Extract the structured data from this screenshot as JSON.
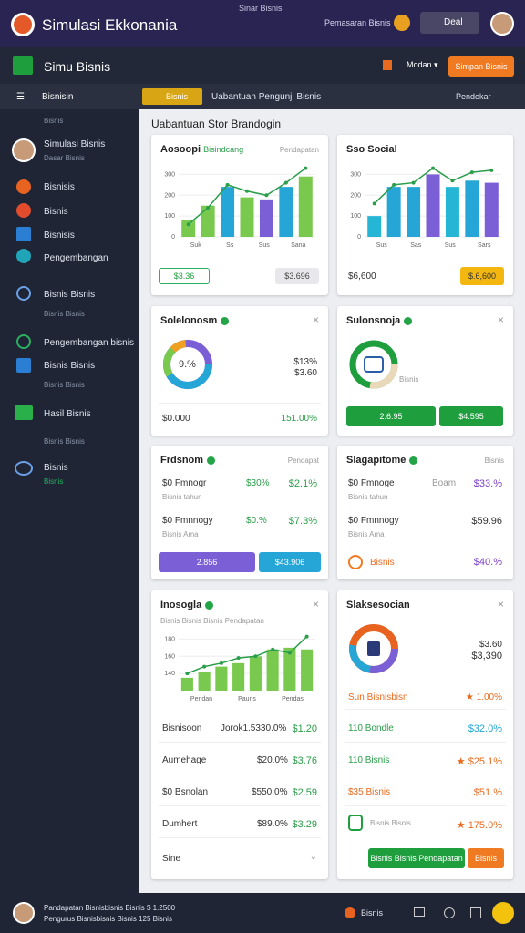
{
  "header": {
    "status": "Sinar Bisnis",
    "app_title": "Simulasi Ekkonania",
    "link": "Pemasaran Bisnis",
    "user_button": "Deal"
  },
  "toolbar": {
    "title": "Simu Bisnis",
    "dropdown": "Modan",
    "button": "Simpan Bisnis"
  },
  "subbar": {
    "menu": "Bisnisin",
    "badge": "Bisnis",
    "breadcrumb": "Uabantuan Pengunji Bisnis",
    "right": "Pendekar"
  },
  "sidebar": {
    "section": "Bisnis",
    "items": [
      {
        "label": "Simulasi Bisnis",
        "sub": "Dasar Bisnis"
      },
      {
        "label": "Bisnisis"
      },
      {
        "label": "Bisnis"
      },
      {
        "label": "Bisnisis"
      },
      {
        "label": "Pengembangan"
      },
      {
        "label": "Bisnis Bisnis",
        "sub": "Bisnis Bisnis"
      },
      {
        "label": "Pengembangan bisnis"
      },
      {
        "label": "Bisnis Bisnis",
        "sub": "Bisnis Bisnis"
      },
      {
        "label": "Hasil Bisnis"
      }
    ],
    "section2": "Bisnis Bisnis",
    "last": {
      "label": "Bisnis",
      "sub": "Bisnis"
    }
  },
  "page_title": "Uabantuan Stor Brandogin",
  "cards": [
    {
      "title": "Aosoopi",
      "tag": "Bisindcang",
      "side": "Pendapatan",
      "badge": "$3.36",
      "button": "$3.696",
      "chart": {
        "ylim": [
          0,
          350
        ],
        "yticks": [
          0,
          100,
          200,
          300
        ],
        "xlabels": [
          "Suk",
          "Ss",
          "Sus",
          "Sana"
        ],
        "bars": [
          {
            "value": 80,
            "color": "#7ac94f"
          },
          {
            "value": 150,
            "color": "#7ac94f"
          },
          {
            "value": 240,
            "color": "#25a6d6"
          },
          {
            "value": 190,
            "color": "#7ac94f"
          },
          {
            "value": 180,
            "color": "#7a5fd6"
          },
          {
            "value": 240,
            "color": "#25a6d6"
          },
          {
            "value": 290,
            "color": "#7ac94f"
          }
        ],
        "line": [
          60,
          140,
          250,
          220,
          200,
          260,
          330
        ]
      }
    },
    {
      "title": "Sso Social",
      "value": "$6,600",
      "button": "$.6,600",
      "chart": {
        "ylim": [
          0,
          350
        ],
        "yticks": [
          0,
          100,
          200,
          300
        ],
        "xlabels": [
          "Sus",
          "Sas",
          "Sus",
          "Sars"
        ],
        "bars": [
          {
            "value": 100,
            "color": "#25b6d6"
          },
          {
            "value": 240,
            "color": "#25a6d6"
          },
          {
            "value": 240,
            "color": "#25a6d6"
          },
          {
            "value": 300,
            "color": "#7a5fd6"
          },
          {
            "value": 240,
            "color": "#25b6d6"
          },
          {
            "value": 270,
            "color": "#25a6d6"
          },
          {
            "value": 260,
            "color": "#7a5fd6"
          }
        ],
        "line": [
          160,
          250,
          260,
          330,
          270,
          310,
          320
        ]
      }
    },
    {
      "title": "Solelonosm",
      "center": "9.%",
      "right1": "$13%",
      "right2": "$3.60",
      "foot_left": "$0.000",
      "foot_right": "151.00%"
    },
    {
      "title": "Sulonsnoja",
      "legend": "Bisnis",
      "button1": "2.6.95",
      "button2": "$4.595"
    },
    {
      "title": "Frdsnom",
      "side": "Pendapat",
      "rows": [
        {
          "label": "$0 Fmnogr",
          "sub": "Bisnis tahun",
          "v1": "$30%",
          "v2": "$2.1%"
        },
        {
          "label": "$0 Fmnnogy",
          "sub": "Bisnis Ama",
          "v1": "$0.%",
          "v2": "$7.3%"
        }
      ],
      "button1": "2.856",
      "button2": "$43.906"
    },
    {
      "title": "Slagapitome",
      "side": "Bisnis",
      "rows": [
        {
          "label": "$0 Fmnoge",
          "sub": "Bisnis tahun",
          "v1": "Boam",
          "v2": "$33.%"
        },
        {
          "label": "$0 Fmnnogy",
          "sub": "Bisnis Ama",
          "v1": "",
          "v2": "$59.96"
        }
      ],
      "foot_label": "Bisnis",
      "foot_value": "$40.%"
    },
    {
      "title": "Inosogla",
      "sub": "Bisnis Bisnis Bisnis Pendapatan",
      "chart": {
        "ylim": [
          120,
          190
        ],
        "yticks": [
          140,
          160,
          180
        ],
        "xlabels": [
          "Pendan",
          "Pauns",
          "Pendas"
        ],
        "bars": [
          {
            "value": 135,
            "color": "#7ac94f"
          },
          {
            "value": 142,
            "color": "#7ac94f"
          },
          {
            "value": 148,
            "color": "#7ac94f"
          },
          {
            "value": 152,
            "color": "#7ac94f"
          },
          {
            "value": 160,
            "color": "#7ac94f"
          },
          {
            "value": 168,
            "color": "#7ac94f"
          },
          {
            "value": 170,
            "color": "#7ac94f"
          },
          {
            "value": 168,
            "color": "#7ac94f"
          }
        ],
        "line": [
          140,
          148,
          152,
          158,
          160,
          168,
          164,
          183
        ]
      },
      "rows": [
        {
          "label": "Bisnisoon",
          "v1": "Jorok1.5330.0%",
          "v2": "$1.20"
        },
        {
          "label": "Aumehage",
          "v1": "$20.0%",
          "v2": "$3.76"
        },
        {
          "label": "$0 Bsnolan",
          "v1": "$550.0%",
          "v2": "$2.59"
        },
        {
          "label": "Dumhert",
          "v1": "$89.0%",
          "v2": "$3.29"
        }
      ],
      "footer": "Sine"
    },
    {
      "title": "Slaksesocian",
      "right1": "$3.60",
      "right2": "$3,390",
      "sub_label": "Sun Bisnisbisn",
      "sub_value": "1.00%",
      "rows": [
        {
          "label": "110 Bondle",
          "value": "$32.0%"
        },
        {
          "label": "110 Bisnis",
          "value": "$25.1%"
        },
        {
          "label": "$35 Bisnis",
          "value": "$51.%"
        },
        {
          "label": "Bisnis Bisnis",
          "value": "175.0%"
        }
      ],
      "button1": "Bisnis Bisnis Pendapatan",
      "button2": "Bisnis"
    }
  ],
  "footer": {
    "line1": "Pandapatan Bisnisbisnis Bisnis $ 1.2500",
    "line2": "Pengurus Bisnisbisnis Bisnis 125 Bisnis",
    "label": "Bisnis"
  }
}
